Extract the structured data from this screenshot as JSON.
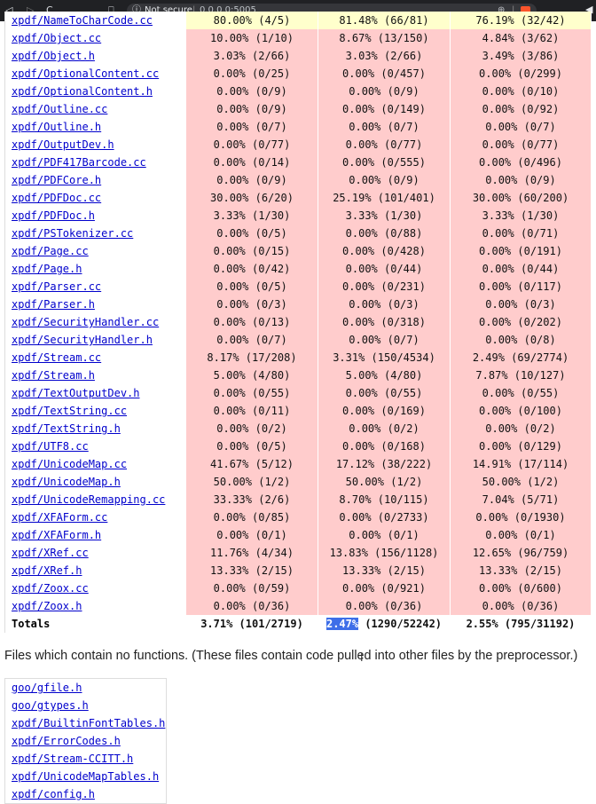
{
  "browser": {
    "security": "Not secure",
    "url": "0.0.0.0:5005"
  },
  "coverage_table": {
    "rows": [
      {
        "file": "xpdf/NameToCharCode.cc",
        "c1": "80.00% (4/5)",
        "c2": "81.48% (66/81)",
        "c3": "76.19% (32/42)"
      },
      {
        "file": "xpdf/Object.cc",
        "c1": "10.00% (1/10)",
        "c2": "8.67% (13/150)",
        "c3": "4.84% (3/62)"
      },
      {
        "file": "xpdf/Object.h",
        "c1": "3.03% (2/66)",
        "c2": "3.03% (2/66)",
        "c3": "3.49% (3/86)"
      },
      {
        "file": "xpdf/OptionalContent.cc",
        "c1": "0.00% (0/25)",
        "c2": "0.00% (0/457)",
        "c3": "0.00% (0/299)"
      },
      {
        "file": "xpdf/OptionalContent.h",
        "c1": "0.00% (0/9)",
        "c2": "0.00% (0/9)",
        "c3": "0.00% (0/10)"
      },
      {
        "file": "xpdf/Outline.cc",
        "c1": "0.00% (0/9)",
        "c2": "0.00% (0/149)",
        "c3": "0.00% (0/92)"
      },
      {
        "file": "xpdf/Outline.h",
        "c1": "0.00% (0/7)",
        "c2": "0.00% (0/7)",
        "c3": "0.00% (0/7)"
      },
      {
        "file": "xpdf/OutputDev.h",
        "c1": "0.00% (0/77)",
        "c2": "0.00% (0/77)",
        "c3": "0.00% (0/77)"
      },
      {
        "file": "xpdf/PDF417Barcode.cc",
        "c1": "0.00% (0/14)",
        "c2": "0.00% (0/555)",
        "c3": "0.00% (0/496)"
      },
      {
        "file": "xpdf/PDFCore.h",
        "c1": "0.00% (0/9)",
        "c2": "0.00% (0/9)",
        "c3": "0.00% (0/9)"
      },
      {
        "file": "xpdf/PDFDoc.cc",
        "c1": "30.00% (6/20)",
        "c2": "25.19% (101/401)",
        "c3": "30.00% (60/200)"
      },
      {
        "file": "xpdf/PDFDoc.h",
        "c1": "3.33% (1/30)",
        "c2": "3.33% (1/30)",
        "c3": "3.33% (1/30)"
      },
      {
        "file": "xpdf/PSTokenizer.cc",
        "c1": "0.00% (0/5)",
        "c2": "0.00% (0/88)",
        "c3": "0.00% (0/71)"
      },
      {
        "file": "xpdf/Page.cc",
        "c1": "0.00% (0/15)",
        "c2": "0.00% (0/428)",
        "c3": "0.00% (0/191)"
      },
      {
        "file": "xpdf/Page.h",
        "c1": "0.00% (0/42)",
        "c2": "0.00% (0/44)",
        "c3": "0.00% (0/44)"
      },
      {
        "file": "xpdf/Parser.cc",
        "c1": "0.00% (0/5)",
        "c2": "0.00% (0/231)",
        "c3": "0.00% (0/117)"
      },
      {
        "file": "xpdf/Parser.h",
        "c1": "0.00% (0/3)",
        "c2": "0.00% (0/3)",
        "c3": "0.00% (0/3)"
      },
      {
        "file": "xpdf/SecurityHandler.cc",
        "c1": "0.00% (0/13)",
        "c2": "0.00% (0/318)",
        "c3": "0.00% (0/202)"
      },
      {
        "file": "xpdf/SecurityHandler.h",
        "c1": "0.00% (0/7)",
        "c2": "0.00% (0/7)",
        "c3": "0.00% (0/8)"
      },
      {
        "file": "xpdf/Stream.cc",
        "c1": "8.17% (17/208)",
        "c2": "3.31% (150/4534)",
        "c3": "2.49% (69/2774)"
      },
      {
        "file": "xpdf/Stream.h",
        "c1": "5.00% (4/80)",
        "c2": "5.00% (4/80)",
        "c3": "7.87% (10/127)"
      },
      {
        "file": "xpdf/TextOutputDev.h",
        "c1": "0.00% (0/55)",
        "c2": "0.00% (0/55)",
        "c3": "0.00% (0/55)"
      },
      {
        "file": "xpdf/TextString.cc",
        "c1": "0.00% (0/11)",
        "c2": "0.00% (0/169)",
        "c3": "0.00% (0/100)"
      },
      {
        "file": "xpdf/TextString.h",
        "c1": "0.00% (0/2)",
        "c2": "0.00% (0/2)",
        "c3": "0.00% (0/2)"
      },
      {
        "file": "xpdf/UTF8.cc",
        "c1": "0.00% (0/5)",
        "c2": "0.00% (0/168)",
        "c3": "0.00% (0/129)"
      },
      {
        "file": "xpdf/UnicodeMap.cc",
        "c1": "41.67% (5/12)",
        "c2": "17.12% (38/222)",
        "c3": "14.91% (17/114)"
      },
      {
        "file": "xpdf/UnicodeMap.h",
        "c1": "50.00% (1/2)",
        "c2": "50.00% (1/2)",
        "c3": "50.00% (1/2)"
      },
      {
        "file": "xpdf/UnicodeRemapping.cc",
        "c1": "33.33% (2/6)",
        "c2": "8.70% (10/115)",
        "c3": "7.04% (5/71)"
      },
      {
        "file": "xpdf/XFAForm.cc",
        "c1": "0.00% (0/85)",
        "c2": "0.00% (0/2733)",
        "c3": "0.00% (0/1930)"
      },
      {
        "file": "xpdf/XFAForm.h",
        "c1": "0.00% (0/1)",
        "c2": "0.00% (0/1)",
        "c3": "0.00% (0/1)"
      },
      {
        "file": "xpdf/XRef.cc",
        "c1": "11.76% (4/34)",
        "c2": "13.83% (156/1128)",
        "c3": "12.65% (96/759)"
      },
      {
        "file": "xpdf/XRef.h",
        "c1": "13.33% (2/15)",
        "c2": "13.33% (2/15)",
        "c3": "13.33% (2/15)"
      },
      {
        "file": "xpdf/Zoox.cc",
        "c1": "0.00% (0/59)",
        "c2": "0.00% (0/921)",
        "c3": "0.00% (0/600)"
      },
      {
        "file": "xpdf/Zoox.h",
        "c1": "0.00% (0/36)",
        "c2": "0.00% (0/36)",
        "c3": "0.00% (0/36)"
      }
    ],
    "totals": {
      "label": "Totals",
      "c1": "3.71% (101/2719)",
      "c2_highlight": "2.47%",
      "c2_rest": " (1290/52242)",
      "c3": "2.55% (795/31192)"
    }
  },
  "no_functions_note": "Files which contain no functions. (These files contain code pulled into other files by the preprocessor.)",
  "no_function_files": [
    "goo/gfile.h",
    "goo/gtypes.h",
    "xpdf/BuiltinFontTables.h",
    "xpdf/ErrorCodes.h",
    "xpdf/Stream-CCITT.h",
    "xpdf/UnicodeMapTables.h",
    "xpdf/config.h"
  ]
}
